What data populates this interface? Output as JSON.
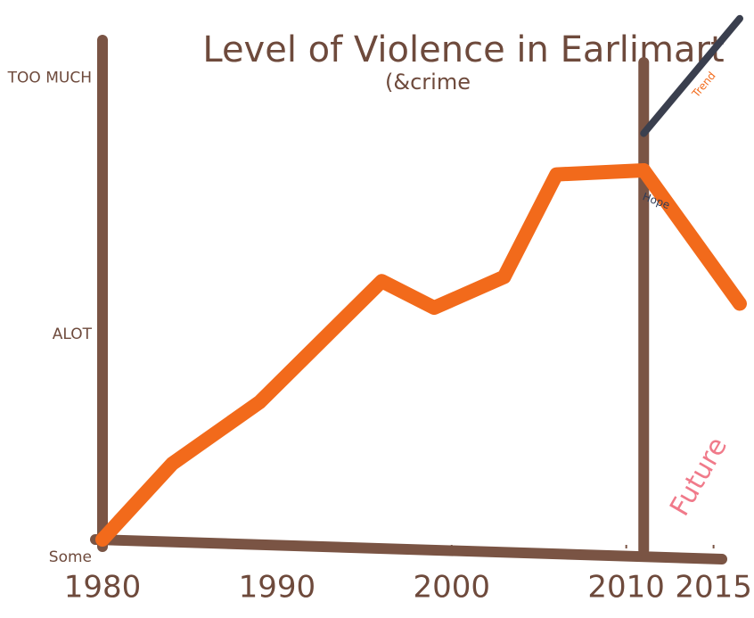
{
  "chart_data": {
    "type": "line",
    "title": "Level of Violence in Earlimart",
    "subtitle": "(&crime",
    "annotation": "Future",
    "x": [
      1980,
      1984,
      1989,
      1996,
      1999,
      2003,
      2006,
      2011
    ],
    "series": [
      {
        "color": "#f26a1b",
        "values": [
          0,
          0.37,
          0.67,
          1.26,
          1.13,
          1.28,
          1.78,
          1.8
        ]
      },
      {
        "name": "Trend",
        "color": "#3a3f4e",
        "x": [
          2011,
          2016.5
        ],
        "values": [
          1.98,
          2.54
        ]
      },
      {
        "name": "Hope",
        "color": "#f26a1b",
        "x": [
          2011,
          2016.5
        ],
        "values": [
          1.8,
          1.15
        ]
      }
    ],
    "divider_x": 2011,
    "xlim": [
      1980,
      2016.5
    ],
    "xticks": [
      1980,
      1990,
      2000,
      2010,
      2015
    ],
    "ylim": [
      0,
      2.6
    ],
    "yticks": [
      {
        "value": 0,
        "label": "Some"
      },
      {
        "value": 1,
        "label": "ALOT"
      },
      {
        "value": 2.25,
        "label": "TOO MUCH"
      }
    ],
    "axis_color": "#7a5444",
    "annotation_color": "#f07a8a"
  }
}
